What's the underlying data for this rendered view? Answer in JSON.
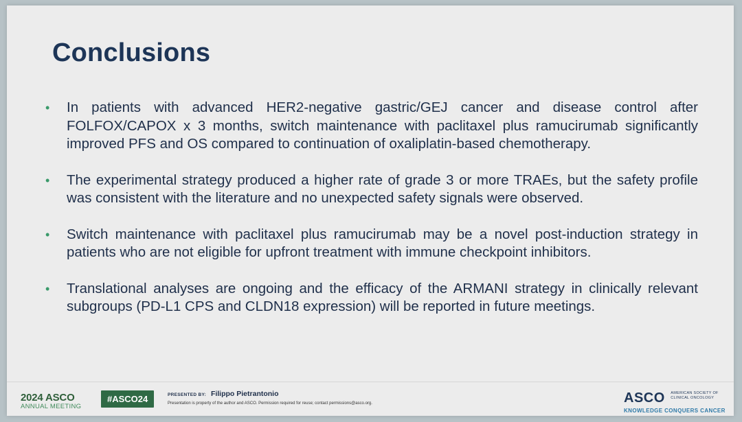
{
  "slide": {
    "title": "Conclusions",
    "bullets": [
      {
        "text": "In patients with advanced HER2-negative gastric/GEJ cancer and disease control after FOLFOX/CAPOX x 3 months, switch maintenance with paclitaxel plus ramucirumab significantly improved PFS and OS compared to continuation of oxaliplatin-based chemotherapy."
      },
      {
        "text": "The experimental strategy produced a higher rate of grade 3 or more TRAEs, but the safety profile was consistent with the literature and no unexpected safety signals were observed."
      },
      {
        "text": "Switch maintenance with paclitaxel plus ramucirumab may be a novel post-induction strategy in patients who are not eligible for upfront treatment with immune checkpoint inhibitors."
      },
      {
        "text": "Translational analyses are ongoing and the efficacy of the ARMANI strategy in clinically relevant subgroups (PD-L1 CPS and CLDN18 expression) will be reported in future meetings."
      }
    ],
    "bullet_symbol": "•"
  },
  "footer": {
    "meeting_year": "2024",
    "meeting_brand": "ASCO",
    "meeting_subtitle": "ANNUAL MEETING",
    "hashtag": "#ASCO24",
    "presented_by_label": "PRESENTED BY:",
    "presenter_name": "Filippo Pietrantonio",
    "notice": "Presentation is property of the author and ASCO. Permission required for reuse; contact permissions@asco.org.",
    "org_logo_word": "ASCO",
    "org_full_name_line1": "AMERICAN SOCIETY OF",
    "org_full_name_line2": "CLINICAL ONCOLOGY",
    "org_tagline": "KNOWLEDGE CONQUERS CANCER"
  },
  "colors": {
    "title": "#1d3557",
    "bullet_dot": "#3a9a6a",
    "hashtag_bg": "#2f6a45",
    "tagline": "#2f7aa8"
  }
}
